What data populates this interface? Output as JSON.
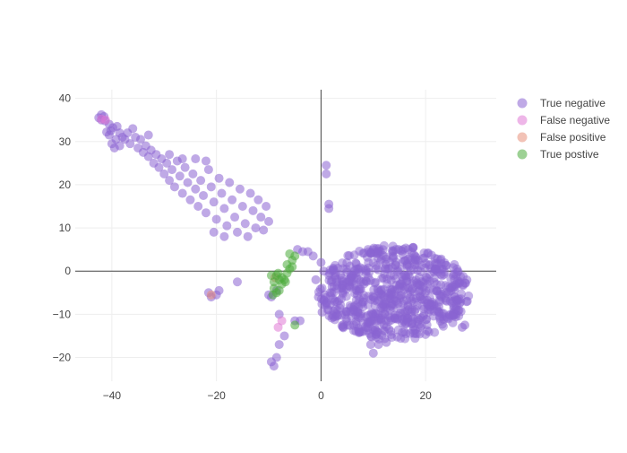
{
  "chart_data": {
    "type": "scatter",
    "xlim": [
      -47,
      33.5
    ],
    "ylim": [
      -25.5,
      42
    ],
    "x_ticks": [
      -40,
      -20,
      0,
      20
    ],
    "y_ticks": [
      -20,
      -10,
      0,
      10,
      20,
      30,
      40
    ],
    "grid": true,
    "zero_lines": true,
    "legend_position": "right",
    "series": [
      {
        "name": "True negative",
        "color": "#8a63d2",
        "points": [
          [
            -42.5,
            35.5
          ],
          [
            -42.0,
            35.0
          ],
          [
            -41.5,
            35.8
          ],
          [
            -42.0,
            36.2
          ],
          [
            -41.3,
            34.8
          ],
          [
            -40.5,
            34.0
          ],
          [
            -39.8,
            33.2
          ],
          [
            -40.2,
            32.5
          ],
          [
            -39.0,
            33.5
          ],
          [
            -38.5,
            32.0
          ],
          [
            -38.0,
            31.0
          ],
          [
            -39.2,
            30.5
          ],
          [
            -40.5,
            31.5
          ],
          [
            -41.0,
            32.2
          ],
          [
            -40.0,
            29.5
          ],
          [
            -39.5,
            28.5
          ],
          [
            -38.5,
            29.0
          ],
          [
            -37.5,
            30.5
          ],
          [
            -37.0,
            32.0
          ],
          [
            -36.0,
            33.0
          ],
          [
            -36.5,
            29.5
          ],
          [
            -35.5,
            31.0
          ],
          [
            -35.0,
            28.5
          ],
          [
            -34.5,
            30.5
          ],
          [
            -34.0,
            27.5
          ],
          [
            -33.5,
            29.0
          ],
          [
            -33.0,
            26.5
          ],
          [
            -32.5,
            28.0
          ],
          [
            -32.0,
            25.0
          ],
          [
            -31.5,
            27.0
          ],
          [
            -31.0,
            24.0
          ],
          [
            -30.5,
            26.0
          ],
          [
            -30.0,
            22.5
          ],
          [
            -29.5,
            25.0
          ],
          [
            -29.0,
            21.0
          ],
          [
            -28.5,
            23.5
          ],
          [
            -28.0,
            19.5
          ],
          [
            -27.5,
            25.5
          ],
          [
            -27.0,
            22.0
          ],
          [
            -26.5,
            18.0
          ],
          [
            -26.0,
            24.0
          ],
          [
            -25.5,
            20.5
          ],
          [
            -25.0,
            16.5
          ],
          [
            -24.5,
            22.5
          ],
          [
            -24.0,
            19.0
          ],
          [
            -23.5,
            15.0
          ],
          [
            -23.0,
            21.0
          ],
          [
            -22.5,
            17.5
          ],
          [
            -22.0,
            13.5
          ],
          [
            -21.5,
            23.5
          ],
          [
            -21.0,
            19.5
          ],
          [
            -20.5,
            16.0
          ],
          [
            -20.0,
            12.0
          ],
          [
            -19.5,
            21.5
          ],
          [
            -19.0,
            18.0
          ],
          [
            -18.5,
            14.5
          ],
          [
            -18.0,
            10.5
          ],
          [
            -17.5,
            20.5
          ],
          [
            -17.0,
            16.5
          ],
          [
            -16.5,
            12.5
          ],
          [
            -16.0,
            9.0
          ],
          [
            -15.5,
            19.0
          ],
          [
            -15.0,
            15.0
          ],
          [
            -14.5,
            11.0
          ],
          [
            -14.0,
            8.0
          ],
          [
            -13.5,
            18.0
          ],
          [
            -13.0,
            14.0
          ],
          [
            -12.5,
            10.0
          ],
          [
            -12.0,
            16.5
          ],
          [
            -11.5,
            12.5
          ],
          [
            -11.0,
            9.5
          ],
          [
            -10.5,
            15.0
          ],
          [
            -10.0,
            11.5
          ],
          [
            -18.5,
            8.0
          ],
          [
            -20.5,
            9.0
          ],
          [
            -26.5,
            26.0
          ],
          [
            -29.0,
            27.0
          ],
          [
            -33.0,
            31.5
          ],
          [
            -24.0,
            26.0
          ],
          [
            -22.0,
            25.5
          ],
          [
            -20.0,
            -5.5
          ],
          [
            -21.0,
            -6.0
          ],
          [
            -21.5,
            -5.0
          ],
          [
            -16.0,
            -2.5
          ],
          [
            -19.5,
            -4.5
          ],
          [
            -10.0,
            -5.5
          ],
          [
            -9.5,
            -6.0
          ],
          [
            -8.5,
            -4.5
          ],
          [
            -8.0,
            -10.0
          ],
          [
            -8.0,
            -17.0
          ],
          [
            -7.0,
            -15.0
          ],
          [
            -9.0,
            -22.0
          ],
          [
            -8.5,
            -20.0
          ],
          [
            -9.5,
            -21.0
          ],
          [
            -5.0,
            -11.5
          ],
          [
            -4.0,
            -11.5
          ],
          [
            -4.5,
            5.0
          ],
          [
            -3.5,
            4.5
          ],
          [
            -2.5,
            4.5
          ],
          [
            -1.5,
            3.5
          ],
          [
            1.0,
            24.5
          ],
          [
            1.0,
            22.5
          ],
          [
            1.5,
            15.5
          ],
          [
            1.5,
            14.5
          ],
          [
            9.5,
            -17.0
          ],
          [
            11.0,
            -17.0
          ],
          [
            12.5,
            -16.5
          ],
          [
            10.0,
            -19.0
          ],
          [
            27.0,
            -13.0
          ],
          [
            27.5,
            -12.5
          ],
          [
            0.5,
            0.0
          ],
          [
            0.0,
            2.0
          ],
          [
            -1.0,
            -2.0
          ],
          [
            -0.5,
            -6.0
          ],
          [
            0.2,
            -9.5
          ]
        ]
      },
      {
        "name": "False negative",
        "color": "#e07ad5",
        "points": [
          [
            -42.0,
            35.2
          ],
          [
            -41.2,
            35.0
          ],
          [
            -8.2,
            -13.0
          ],
          [
            -7.5,
            -11.5
          ]
        ]
      },
      {
        "name": "False positive",
        "color": "#e8907a",
        "points": [
          [
            -21.0,
            -5.5
          ],
          [
            -8.8,
            -1.5
          ]
        ]
      },
      {
        "name": "True postive",
        "color": "#4cac3c",
        "points": [
          [
            -9.5,
            -1.0
          ],
          [
            -9.0,
            -2.5
          ],
          [
            -8.5,
            -1.0
          ],
          [
            -8.0,
            -2.0
          ],
          [
            -7.5,
            -3.0
          ],
          [
            -9.0,
            -4.0
          ],
          [
            -8.5,
            -5.0
          ],
          [
            -8.0,
            -4.5
          ],
          [
            -7.0,
            -2.0
          ],
          [
            -6.5,
            -0.5
          ],
          [
            -6.0,
            0.5
          ],
          [
            -6.5,
            1.5
          ],
          [
            -5.5,
            2.5
          ],
          [
            -5.0,
            3.5
          ],
          [
            -6.0,
            4.0
          ],
          [
            -7.5,
            -1.5
          ],
          [
            -8.2,
            -0.5
          ],
          [
            -6.8,
            -2.5
          ],
          [
            -9.2,
            -5.5
          ],
          [
            -5.5,
            1.0
          ],
          [
            -5.0,
            -12.5
          ]
        ]
      }
    ],
    "dense_cluster": {
      "series": "True negative",
      "center": [
        14,
        -5
      ],
      "rx": 14.5,
      "ry": 11.0,
      "count": 700
    }
  }
}
